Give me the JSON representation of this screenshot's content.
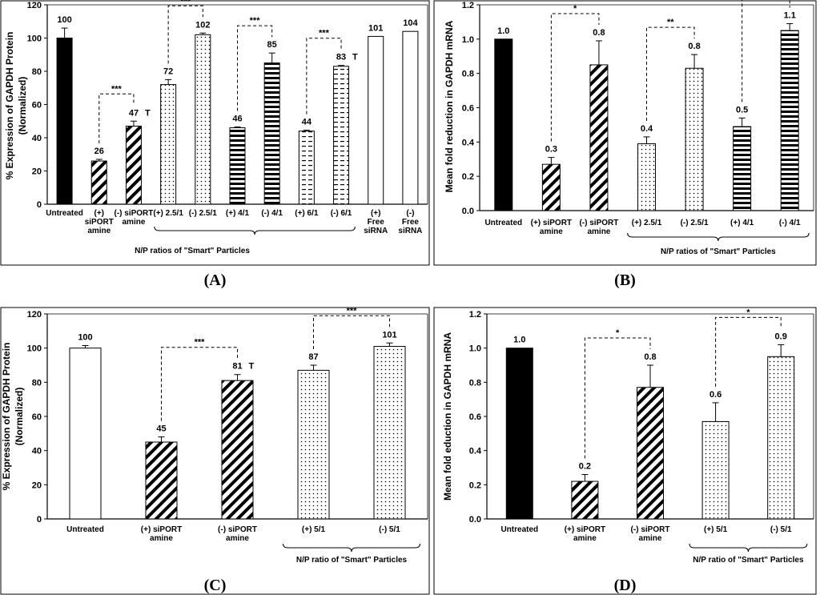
{
  "chart_data": [
    {
      "id": "A",
      "type": "bar",
      "panel_label": "(A)",
      "ylabel": "% Expression of GAPDH Protein",
      "ylabel2": "(Normalized)",
      "ylim": [
        0,
        120
      ],
      "ticks": [
        "0",
        "20",
        "40",
        "60",
        "80",
        "100",
        "120"
      ],
      "group_label": "N/P ratios of \"Smart\" Particles",
      "bars": [
        {
          "cat": [
            "Untreated"
          ],
          "value": 100,
          "label": "100",
          "err": 6,
          "pattern": "black"
        },
        {
          "cat": [
            "(+)",
            "siPORT",
            "amine"
          ],
          "value": 26,
          "label": "26",
          "err": 1,
          "pattern": "diag"
        },
        {
          "cat": [
            "(-) siPORT",
            "amine"
          ],
          "value": 47,
          "label": "47",
          "err": 3,
          "pattern": "diag",
          "mark": "T"
        },
        {
          "cat": [
            "(+) 2.5/1"
          ],
          "value": 72,
          "label": "72",
          "err": 3,
          "pattern": "dots"
        },
        {
          "cat": [
            "(-) 2.5/1"
          ],
          "value": 102,
          "label": "102",
          "err": 1,
          "pattern": "dots"
        },
        {
          "cat": [
            "(+) 4/1"
          ],
          "value": 46,
          "label": "46",
          "err": 0.5,
          "pattern": "hstripe"
        },
        {
          "cat": [
            "(-) 4/1"
          ],
          "value": 85,
          "label": "85",
          "err": 6,
          "pattern": "hstripe"
        },
        {
          "cat": [
            "(+) 6/1"
          ],
          "value": 44,
          "label": "44",
          "err": 0.5,
          "pattern": "dash"
        },
        {
          "cat": [
            "(-) 6/1"
          ],
          "value": 83,
          "label": "83",
          "err": 0.5,
          "pattern": "dash",
          "mark": "T"
        },
        {
          "cat": [
            "(+)",
            "Free",
            "siRNA"
          ],
          "value": 101,
          "label": "101",
          "err": 0,
          "pattern": "white"
        },
        {
          "cat": [
            "(-)",
            "Free",
            "siRNA"
          ],
          "value": 104,
          "label": "104",
          "err": 0,
          "pattern": "white"
        }
      ],
      "significance": [
        {
          "from": 1,
          "to": 2,
          "label": "***"
        },
        {
          "from": 3,
          "to": 4,
          "label": "***"
        },
        {
          "from": 5,
          "to": 6,
          "label": "***"
        },
        {
          "from": 7,
          "to": 8,
          "label": "***"
        }
      ],
      "group_span": [
        3,
        8
      ]
    },
    {
      "id": "B",
      "type": "bar",
      "panel_label": "(B)",
      "ylabel": "Mean fold reduction in GAPDH mRNA",
      "ylim": [
        0,
        1.2
      ],
      "ticks": [
        "0.0",
        "0.2",
        "0.4",
        "0.6",
        "0.8",
        "1.0",
        "1.2"
      ],
      "group_label": "N/P ratios of \"Smart\" Particles",
      "bars": [
        {
          "cat": [
            "Untreated"
          ],
          "value": 1.0,
          "label": "1.0",
          "err": 0,
          "pattern": "black"
        },
        {
          "cat": [
            "(+) siPORT",
            "amine"
          ],
          "value": 0.27,
          "label": "0.3",
          "err": 0.04,
          "pattern": "diag"
        },
        {
          "cat": [
            "(-) siPORT",
            "amine"
          ],
          "value": 0.85,
          "label": "0.8",
          "err": 0.14,
          "pattern": "diag"
        },
        {
          "cat": [
            "(+) 2.5/1"
          ],
          "value": 0.39,
          "label": "0.4",
          "err": 0.04,
          "pattern": "dots"
        },
        {
          "cat": [
            "(-) 2.5/1"
          ],
          "value": 0.83,
          "label": "0.8",
          "err": 0.08,
          "pattern": "dots"
        },
        {
          "cat": [
            "(+) 4/1"
          ],
          "value": 0.49,
          "label": "0.5",
          "err": 0.05,
          "pattern": "hstripe"
        },
        {
          "cat": [
            "(-) 4/1"
          ],
          "value": 1.05,
          "label": "1.1",
          "err": 0.04,
          "pattern": "hstripe"
        }
      ],
      "significance": [
        {
          "from": 1,
          "to": 2,
          "label": "*"
        },
        {
          "from": 3,
          "to": 4,
          "label": "**"
        },
        {
          "from": 5,
          "to": 6,
          "label": "***"
        }
      ],
      "group_span": [
        3,
        6
      ]
    },
    {
      "id": "C",
      "type": "bar",
      "panel_label": "(C)",
      "ylabel": "% Expression of GAPDH Protein",
      "ylabel2": "(Normalized)",
      "ylim": [
        0,
        120
      ],
      "ticks": [
        "0",
        "20",
        "40",
        "60",
        "80",
        "100",
        "120"
      ],
      "group_label": "N/P ratio of \"Smart\" Particles",
      "bars": [
        {
          "cat": [
            "Untreated"
          ],
          "value": 100,
          "label": "100",
          "err": 1.5,
          "pattern": "white"
        },
        {
          "cat": [
            "(+) siPORT",
            "amine"
          ],
          "value": 45,
          "label": "45",
          "err": 3,
          "pattern": "diag"
        },
        {
          "cat": [
            "(-) siPORT",
            "amine"
          ],
          "value": 81,
          "label": "81",
          "err": 3.5,
          "pattern": "diag",
          "mark": "T"
        },
        {
          "cat": [
            "(+) 5/1"
          ],
          "value": 87,
          "label": "87",
          "err": 3,
          "pattern": "dots"
        },
        {
          "cat": [
            "(-) 5/1"
          ],
          "value": 101,
          "label": "101",
          "err": 2,
          "pattern": "dots"
        }
      ],
      "significance": [
        {
          "from": 1,
          "to": 2,
          "label": "***"
        },
        {
          "from": 3,
          "to": 4,
          "label": "***"
        }
      ],
      "group_span": [
        3,
        4
      ]
    },
    {
      "id": "D",
      "type": "bar",
      "panel_label": "(D)",
      "ylabel": "Mean fold eduction in GAPDH mRNA",
      "ylim": [
        0,
        1.2
      ],
      "ticks": [
        "0.0",
        "0.2",
        "0.4",
        "0.6",
        "0.8",
        "1.0",
        "1.2"
      ],
      "group_label": "N/P ratio of \"Smart\" Particles",
      "bars": [
        {
          "cat": [
            "Untreated"
          ],
          "value": 1.0,
          "label": "1.0",
          "err": 0,
          "pattern": "black"
        },
        {
          "cat": [
            "(+) siPORT",
            "amine"
          ],
          "value": 0.22,
          "label": "0.2",
          "err": 0.04,
          "pattern": "diag"
        },
        {
          "cat": [
            "(-) siPORT",
            "amine"
          ],
          "value": 0.77,
          "label": "0.8",
          "err": 0.13,
          "pattern": "diag"
        },
        {
          "cat": [
            "(+) 5/1"
          ],
          "value": 0.57,
          "label": "0.6",
          "err": 0.11,
          "pattern": "dots"
        },
        {
          "cat": [
            "(-) 5/1"
          ],
          "value": 0.95,
          "label": "0.9",
          "err": 0.07,
          "pattern": "dots"
        }
      ],
      "significance": [
        {
          "from": 1,
          "to": 2,
          "label": "*"
        },
        {
          "from": 3,
          "to": 4,
          "label": "*"
        }
      ],
      "group_span": [
        3,
        4
      ]
    }
  ]
}
